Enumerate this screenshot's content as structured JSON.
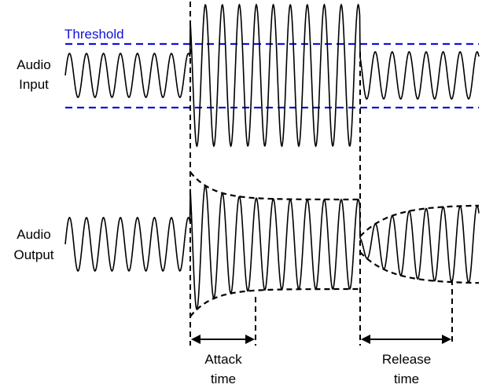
{
  "labels": {
    "threshold": "Threshold",
    "input_line1": "Audio",
    "input_line2": "Input",
    "output_line1": "Audio",
    "output_line2": "Output",
    "attack_line1": "Attack",
    "attack_line2": "time",
    "release_line1": "Release",
    "release_line2": "time"
  },
  "colors": {
    "threshold": "#1010dd",
    "signal": "#000000",
    "envelope": "#000000",
    "background": "#ffffff"
  }
}
